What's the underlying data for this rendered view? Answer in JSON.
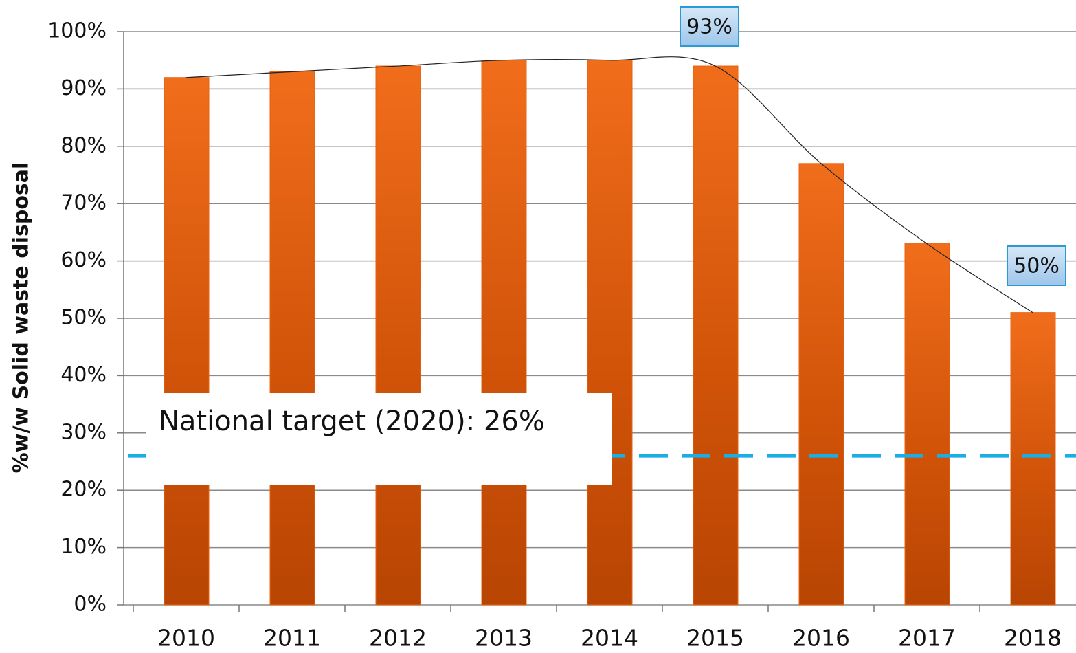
{
  "chart_data": {
    "type": "bar",
    "y_axis_label": "%w/w Solid waste disposal",
    "categories": [
      "2010",
      "2011",
      "2012",
      "2013",
      "2014",
      "2015",
      "2016",
      "2017",
      "2018"
    ],
    "values": [
      92,
      93,
      94,
      95,
      95,
      94,
      77,
      63,
      51
    ],
    "color": "#e8620f",
    "ylim": [
      0,
      100
    ],
    "yticks": [
      {
        "value": 0,
        "label": "0%"
      },
      {
        "value": 10,
        "label": "10%"
      },
      {
        "value": 20,
        "label": "20%"
      },
      {
        "value": 30,
        "label": "30%"
      },
      {
        "value": 40,
        "label": "40%"
      },
      {
        "value": 50,
        "label": "50%"
      },
      {
        "value": 60,
        "label": "60%"
      },
      {
        "value": 70,
        "label": "70%"
      },
      {
        "value": 80,
        "label": "80%"
      },
      {
        "value": 90,
        "label": "90%"
      },
      {
        "value": 100,
        "label": "100%"
      }
    ],
    "grid": true,
    "trendline": true,
    "target": {
      "value": 26,
      "label": "National target (2020): 26%",
      "color": "#1aaee5"
    },
    "annotations": [
      "93%",
      "50%"
    ]
  }
}
